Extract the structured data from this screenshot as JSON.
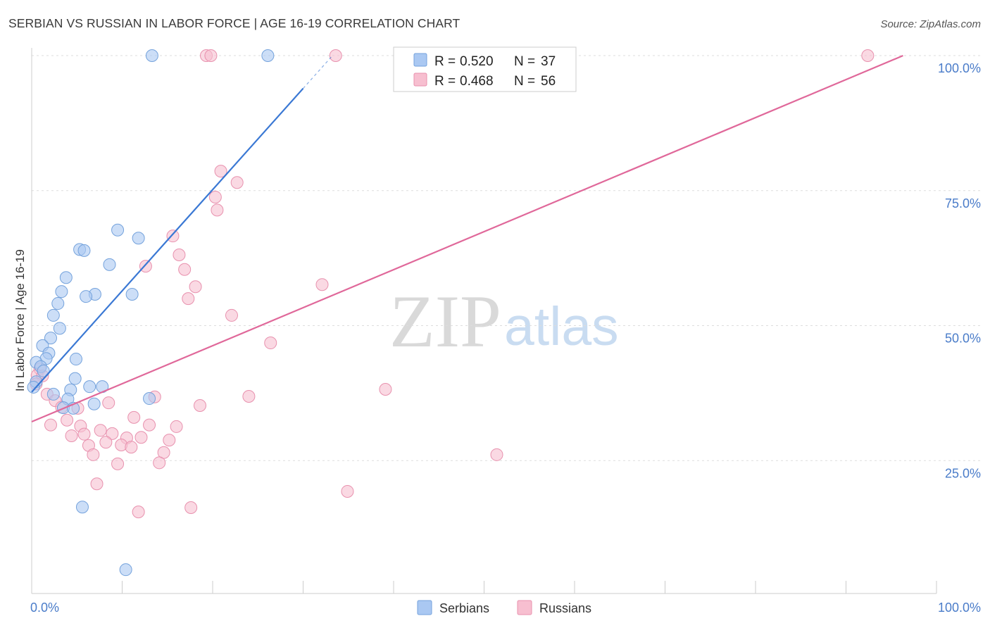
{
  "header": {
    "title": "SERBIAN VS RUSSIAN IN LABOR FORCE | AGE 16-19 CORRELATION CHART",
    "source": "Source: ZipAtlas.com"
  },
  "watermark": {
    "zip": "ZIP",
    "atlas": "atlas"
  },
  "colors": {
    "serbians_fill": "#aac8f2",
    "serbians_stroke": "#74a2dc",
    "serbians_line": "#3a78d4",
    "russians_fill": "#f7bfd0",
    "russians_stroke": "#e891ae",
    "russians_line": "#e0689a",
    "tick_label": "#4a7cc9",
    "grid": "#dddddd",
    "axis": "#cccccc"
  },
  "chart_data": {
    "type": "scatter",
    "title": "SERBIAN VS RUSSIAN IN LABOR FORCE | AGE 16-19 CORRELATION CHART",
    "xlabel": "",
    "ylabel": "In Labor Force | Age 16-19",
    "xlim": [
      0,
      100
    ],
    "ylim": [
      0,
      100
    ],
    "x_ticks": [
      0,
      10,
      20,
      30,
      40,
      50,
      60,
      70,
      80,
      90,
      100
    ],
    "x_tick_labels": [
      {
        "value": 0,
        "label": "0.0%"
      },
      {
        "value": 100,
        "label": "100.0%"
      }
    ],
    "y_ticks": [
      {
        "value": 100,
        "label": "100.0%"
      },
      {
        "value": 75,
        "label": "75.0%"
      },
      {
        "value": 50,
        "label": "50.0%"
      },
      {
        "value": 25,
        "label": "25.0%"
      }
    ],
    "grid": "horizontal-dashed",
    "legend_position": "top-center",
    "legend_labels": {
      "r": "R =",
      "n": "N ="
    },
    "series": [
      {
        "name": "Serbians",
        "r": "0.520",
        "n": "37",
        "trend": {
          "intercept": 37.7,
          "slope": 1.874,
          "x_solid_end": 30,
          "x_dashed_end": 33.1
        },
        "points": [
          [
            13.3,
            100
          ],
          [
            26.1,
            100
          ],
          [
            9.5,
            67.7
          ],
          [
            11.8,
            66.2
          ],
          [
            5.3,
            64.1
          ],
          [
            5.8,
            63.9
          ],
          [
            8.6,
            61.3
          ],
          [
            3.8,
            58.9
          ],
          [
            3.3,
            56.3
          ],
          [
            7.0,
            55.8
          ],
          [
            6.0,
            55.4
          ],
          [
            11.1,
            55.8
          ],
          [
            2.9,
            54.1
          ],
          [
            2.4,
            51.9
          ],
          [
            3.1,
            49.5
          ],
          [
            2.1,
            47.7
          ],
          [
            1.2,
            46.3
          ],
          [
            1.9,
            44.9
          ],
          [
            1.6,
            43.9
          ],
          [
            4.9,
            43.8
          ],
          [
            0.5,
            43.2
          ],
          [
            1.0,
            42.4
          ],
          [
            1.3,
            41.6
          ],
          [
            4.8,
            40.2
          ],
          [
            0.5,
            39.6
          ],
          [
            0.2,
            38.6
          ],
          [
            6.4,
            38.7
          ],
          [
            7.8,
            38.7
          ],
          [
            4.3,
            38.1
          ],
          [
            2.4,
            37.3
          ],
          [
            4.0,
            36.4
          ],
          [
            13.0,
            36.5
          ],
          [
            6.9,
            35.5
          ],
          [
            3.5,
            34.8
          ],
          [
            4.6,
            34.7
          ],
          [
            5.6,
            16.4
          ],
          [
            10.4,
            4.8
          ]
        ]
      },
      {
        "name": "Russians",
        "r": "0.468",
        "n": "56",
        "trend": {
          "intercept": 32.2,
          "slope": 0.704,
          "x_solid_end": 96.3,
          "x_dashed_end": 96.3
        },
        "points": [
          [
            19.3,
            100
          ],
          [
            19.8,
            100
          ],
          [
            33.6,
            100
          ],
          [
            92.4,
            100
          ],
          [
            20.9,
            78.6
          ],
          [
            22.7,
            76.5
          ],
          [
            20.3,
            73.8
          ],
          [
            20.5,
            71.4
          ],
          [
            15.6,
            66.6
          ],
          [
            16.3,
            63.1
          ],
          [
            12.6,
            61.0
          ],
          [
            16.9,
            60.4
          ],
          [
            32.1,
            57.6
          ],
          [
            18.1,
            57.2
          ],
          [
            17.3,
            55.0
          ],
          [
            22.1,
            51.9
          ],
          [
            26.4,
            46.8
          ],
          [
            0.9,
            42.0
          ],
          [
            0.6,
            40.8
          ],
          [
            1.2,
            40.7
          ],
          [
            0.5,
            39.2
          ],
          [
            39.1,
            38.2
          ],
          [
            1.7,
            37.3
          ],
          [
            24.0,
            36.9
          ],
          [
            13.6,
            36.8
          ],
          [
            2.6,
            36.1
          ],
          [
            8.5,
            35.7
          ],
          [
            18.6,
            35.2
          ],
          [
            3.3,
            34.9
          ],
          [
            5.1,
            34.7
          ],
          [
            11.3,
            33.0
          ],
          [
            3.9,
            32.5
          ],
          [
            2.1,
            31.6
          ],
          [
            13.0,
            31.6
          ],
          [
            16.0,
            31.3
          ],
          [
            5.4,
            31.4
          ],
          [
            7.6,
            30.6
          ],
          [
            5.8,
            29.9
          ],
          [
            8.9,
            30.0
          ],
          [
            4.4,
            29.6
          ],
          [
            12.1,
            29.3
          ],
          [
            10.5,
            29.2
          ],
          [
            8.2,
            28.4
          ],
          [
            15.2,
            28.8
          ],
          [
            9.9,
            27.9
          ],
          [
            6.3,
            27.8
          ],
          [
            11.0,
            27.5
          ],
          [
            14.6,
            26.5
          ],
          [
            6.8,
            26.1
          ],
          [
            51.4,
            26.1
          ],
          [
            9.5,
            24.4
          ],
          [
            14.1,
            24.6
          ],
          [
            7.2,
            20.7
          ],
          [
            34.9,
            19.3
          ],
          [
            17.6,
            16.3
          ],
          [
            11.8,
            15.5
          ]
        ]
      }
    ]
  }
}
